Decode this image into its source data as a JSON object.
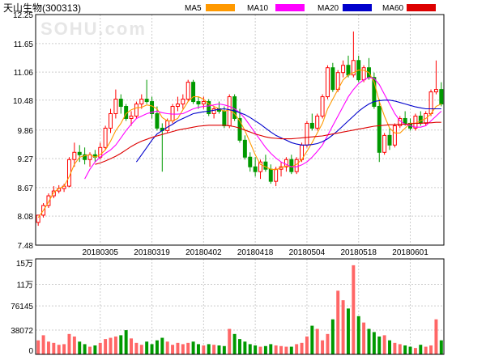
{
  "header": {
    "title": "天山生物(300313)",
    "watermark": "SOHU.com"
  },
  "legend": [
    {
      "label": "MA5",
      "color": "#ff9900"
    },
    {
      "label": "MA10",
      "color": "#ff00ff"
    },
    {
      "label": "MA20",
      "color": "#0000cc"
    },
    {
      "label": "MA60",
      "color": "#dd0000"
    }
  ],
  "colors": {
    "up": "#ff0000",
    "down": "#009900",
    "vol_up": "#ff6666",
    "vol_down": "#009900",
    "grid": "#cccccc",
    "axis": "#000000"
  },
  "chart_data": [
    {
      "type": "candlestick",
      "ylim": [
        7.48,
        12.25
      ],
      "yticks": [
        "12.25",
        "11.65",
        "11.06",
        "10.48",
        "9.86",
        "9.27",
        "8.67",
        "8.08",
        "7.48"
      ],
      "xticks": [
        {
          "label": "20180305",
          "index": 12
        },
        {
          "label": "20180319",
          "index": 22
        },
        {
          "label": "20180402",
          "index": 32
        },
        {
          "label": "20180418",
          "index": 42
        },
        {
          "label": "20180504",
          "index": 52
        },
        {
          "label": "20180518",
          "index": 62
        },
        {
          "label": "20180601",
          "index": 72
        }
      ],
      "candles": [
        [
          7.95,
          8.1,
          7.88,
          8.1
        ],
        [
          8.1,
          8.35,
          8.05,
          8.3
        ],
        [
          8.3,
          8.55,
          8.25,
          8.5
        ],
        [
          8.5,
          8.7,
          8.45,
          8.6
        ],
        [
          8.6,
          8.72,
          8.55,
          8.65
        ],
        [
          8.65,
          8.75,
          8.58,
          8.7
        ],
        [
          8.7,
          9.3,
          8.68,
          9.25
        ],
        [
          9.25,
          9.6,
          9.1,
          9.4
        ],
        [
          9.4,
          9.55,
          9.2,
          9.35
        ],
        [
          9.35,
          9.5,
          9.15,
          9.25
        ],
        [
          9.25,
          9.4,
          9.1,
          9.35
        ],
        [
          9.35,
          9.45,
          9.2,
          9.3
        ],
        [
          9.3,
          9.6,
          9.25,
          9.5
        ],
        [
          9.5,
          9.95,
          9.45,
          9.9
        ],
        [
          9.9,
          10.3,
          9.8,
          10.2
        ],
        [
          10.2,
          10.7,
          10.1,
          10.5
        ],
        [
          10.5,
          10.6,
          10.2,
          10.35
        ],
        [
          10.35,
          10.4,
          10.05,
          10.1
        ],
        [
          10.1,
          10.25,
          9.95,
          10.15
        ],
        [
          10.15,
          10.45,
          10.1,
          10.4
        ],
        [
          10.4,
          10.6,
          10.3,
          10.5
        ],
        [
          10.5,
          10.9,
          10.4,
          10.45
        ],
        [
          10.45,
          10.55,
          10.1,
          10.2
        ],
        [
          10.2,
          10.35,
          9.85,
          9.9
        ],
        [
          9.9,
          10.0,
          9.0,
          9.85
        ],
        [
          9.85,
          10.1,
          9.8,
          10.05
        ],
        [
          10.05,
          10.4,
          10.0,
          10.35
        ],
        [
          10.35,
          10.55,
          10.25,
          10.4
        ],
        [
          10.4,
          10.6,
          10.3,
          10.5
        ],
        [
          10.5,
          10.9,
          10.45,
          10.85
        ],
        [
          10.85,
          10.9,
          10.4,
          10.45
        ],
        [
          10.45,
          10.55,
          10.3,
          10.4
        ],
        [
          10.4,
          10.55,
          10.3,
          10.45
        ],
        [
          10.45,
          10.5,
          10.15,
          10.2
        ],
        [
          10.2,
          10.35,
          10.1,
          10.3
        ],
        [
          10.3,
          10.45,
          10.2,
          10.25
        ],
        [
          10.25,
          10.35,
          9.9,
          9.95
        ],
        [
          9.95,
          10.6,
          9.9,
          10.55
        ],
        [
          10.55,
          10.6,
          10.05,
          10.1
        ],
        [
          10.1,
          10.3,
          9.6,
          9.65
        ],
        [
          9.65,
          9.75,
          9.25,
          9.3
        ],
        [
          9.3,
          9.4,
          9.0,
          9.1
        ],
        [
          9.1,
          9.3,
          8.9,
          9.0
        ],
        [
          9.0,
          9.25,
          8.85,
          9.2
        ],
        [
          9.2,
          9.35,
          9.0,
          9.05
        ],
        [
          9.05,
          9.15,
          8.75,
          8.8
        ],
        [
          8.8,
          9.1,
          8.7,
          9.05
        ],
        [
          9.05,
          9.2,
          8.9,
          9.1
        ],
        [
          9.1,
          9.3,
          9.0,
          9.25
        ],
        [
          9.25,
          9.35,
          8.95,
          9.0
        ],
        [
          9.0,
          9.3,
          8.95,
          9.25
        ],
        [
          9.25,
          9.6,
          9.2,
          9.55
        ],
        [
          9.55,
          10.05,
          9.5,
          10.0
        ],
        [
          10.0,
          10.2,
          9.85,
          9.9
        ],
        [
          9.9,
          10.2,
          9.85,
          10.15
        ],
        [
          10.15,
          10.6,
          10.1,
          10.55
        ],
        [
          10.55,
          11.2,
          10.5,
          11.15
        ],
        [
          11.15,
          11.25,
          10.65,
          10.7
        ],
        [
          10.7,
          11.1,
          10.65,
          11.05
        ],
        [
          11.05,
          11.3,
          10.95,
          11.2
        ],
        [
          11.2,
          11.4,
          10.95,
          11.0
        ],
        [
          11.0,
          11.9,
          10.95,
          11.3
        ],
        [
          11.3,
          11.4,
          10.85,
          10.9
        ],
        [
          10.9,
          11.2,
          10.85,
          11.15
        ],
        [
          11.15,
          11.35,
          10.9,
          10.95
        ],
        [
          10.95,
          11.05,
          10.3,
          10.35
        ],
        [
          10.35,
          10.5,
          9.2,
          9.4
        ],
        [
          9.4,
          9.8,
          9.35,
          9.75
        ],
        [
          9.75,
          9.9,
          9.45,
          9.55
        ],
        [
          9.55,
          10.0,
          9.5,
          9.95
        ],
        [
          9.95,
          10.15,
          9.9,
          10.1
        ],
        [
          10.1,
          10.25,
          9.95,
          10.0
        ],
        [
          10.0,
          10.1,
          9.85,
          9.9
        ],
        [
          9.9,
          10.2,
          9.85,
          10.15
        ],
        [
          10.15,
          10.25,
          9.95,
          10.0
        ],
        [
          10.0,
          10.25,
          9.95,
          10.2
        ],
        [
          10.2,
          10.7,
          10.15,
          10.65
        ],
        [
          10.65,
          11.3,
          10.6,
          10.7
        ],
        [
          10.7,
          10.85,
          10.35,
          10.4
        ]
      ],
      "ma5": [
        8.05,
        8.2,
        8.37,
        8.57,
        8.65,
        8.7,
        8.9,
        9.15,
        9.3,
        9.33,
        9.35,
        9.3,
        9.35,
        9.45,
        9.63,
        9.85,
        10.0,
        10.2,
        10.28,
        10.32,
        10.33,
        10.38,
        10.36,
        10.3,
        10.12,
        10.05,
        10.05,
        10.1,
        10.28,
        10.45,
        10.55,
        10.55,
        10.5,
        10.4,
        10.35,
        10.3,
        10.25,
        10.28,
        10.2,
        10.05,
        9.85,
        9.6,
        9.35,
        9.15,
        9.1,
        9.05,
        9.04,
        9.08,
        9.12,
        9.1,
        9.15,
        9.25,
        9.42,
        9.6,
        9.8,
        10.0,
        10.3,
        10.5,
        10.7,
        10.9,
        11.0,
        11.05,
        11.1,
        11.1,
        11.05,
        10.85,
        10.45,
        10.15,
        9.9,
        9.8,
        9.8,
        9.9,
        10.0,
        10.0,
        10.05,
        10.1,
        10.2,
        10.35,
        10.4
      ],
      "ma10": [
        null,
        null,
        null,
        null,
        null,
        null,
        null,
        null,
        null,
        8.85,
        9.05,
        9.2,
        9.3,
        9.38,
        9.45,
        9.55,
        9.7,
        9.85,
        9.98,
        10.1,
        10.15,
        10.2,
        10.23,
        10.25,
        10.22,
        10.2,
        10.19,
        10.19,
        10.2,
        10.25,
        10.3,
        10.33,
        10.35,
        10.36,
        10.38,
        10.4,
        10.38,
        10.35,
        10.3,
        10.22,
        10.1,
        9.95,
        9.8,
        9.65,
        9.5,
        9.38,
        9.28,
        9.2,
        9.15,
        9.1,
        9.1,
        9.14,
        9.2,
        9.3,
        9.42,
        9.55,
        9.75,
        9.95,
        10.15,
        10.35,
        10.55,
        10.7,
        10.82,
        10.9,
        10.95,
        10.93,
        10.8,
        10.6,
        10.4,
        10.2,
        10.05,
        9.98,
        9.95,
        9.92,
        9.92,
        9.95,
        10.05,
        10.15,
        10.25
      ],
      "ma20": [
        null,
        null,
        null,
        null,
        null,
        null,
        null,
        null,
        null,
        null,
        null,
        null,
        null,
        null,
        null,
        null,
        null,
        null,
        null,
        9.2,
        9.35,
        9.5,
        9.65,
        9.78,
        9.85,
        9.92,
        9.98,
        10.05,
        10.1,
        10.15,
        10.2,
        10.22,
        10.24,
        10.25,
        10.27,
        10.29,
        10.3,
        10.28,
        10.26,
        10.22,
        10.18,
        10.12,
        10.05,
        9.98,
        9.9,
        9.82,
        9.75,
        9.7,
        9.65,
        9.6,
        9.57,
        9.55,
        9.55,
        9.56,
        9.58,
        9.62,
        9.68,
        9.76,
        9.85,
        9.95,
        10.05,
        10.15,
        10.25,
        10.33,
        10.4,
        10.45,
        10.47,
        10.48,
        10.48,
        10.46,
        10.43,
        10.4,
        10.37,
        10.34,
        10.32,
        10.3,
        10.3,
        10.3,
        10.3
      ],
      "ma60": [
        null,
        null,
        null,
        null,
        null,
        null,
        null,
        null,
        null,
        null,
        null,
        9.15,
        9.18,
        9.22,
        9.27,
        9.32,
        9.38,
        9.45,
        9.52,
        9.58,
        9.63,
        9.67,
        9.71,
        9.74,
        9.77,
        9.8,
        9.83,
        9.86,
        9.88,
        9.9,
        9.92,
        9.94,
        9.95,
        9.96,
        9.96,
        9.96,
        9.96,
        9.95,
        9.93,
        9.9,
        9.86,
        9.82,
        9.78,
        9.75,
        9.72,
        9.7,
        9.69,
        9.68,
        9.68,
        9.68,
        9.69,
        9.7,
        9.71,
        9.72,
        9.73,
        9.74,
        9.76,
        9.78,
        9.8,
        9.82,
        9.84,
        9.86,
        9.88,
        9.9,
        9.92,
        9.94,
        9.95,
        9.96,
        9.97,
        9.97,
        9.98,
        9.98,
        9.99,
        10.0,
        10.0,
        10.01,
        10.01,
        10.02,
        10.02
      ]
    },
    {
      "type": "bar",
      "yticks": [
        "15万",
        "11万",
        "76145",
        "38072",
        "0"
      ],
      "ylim": [
        0,
        150000
      ],
      "volumes": [
        22000,
        30000,
        20000,
        18000,
        15000,
        16000,
        32000,
        28000,
        20000,
        16000,
        12000,
        14000,
        18000,
        24000,
        26000,
        28000,
        30000,
        38000,
        25000,
        18000,
        15000,
        20000,
        16000,
        22000,
        26000,
        20000,
        15000,
        18000,
        16000,
        18000,
        20000,
        16000,
        14000,
        16000,
        15000,
        14000,
        13000,
        40000,
        32000,
        24000,
        20000,
        16000,
        14000,
        12000,
        13000,
        16000,
        14000,
        13000,
        12000,
        12000,
        16000,
        18000,
        28000,
        45000,
        40000,
        22000,
        32000,
        55000,
        100000,
        85000,
        72000,
        140000,
        60000,
        50000,
        40000,
        35000,
        28000,
        30000,
        22000,
        18000,
        16000,
        14000,
        12000,
        10000,
        15000,
        12000,
        14000,
        55000,
        22000
      ]
    }
  ]
}
